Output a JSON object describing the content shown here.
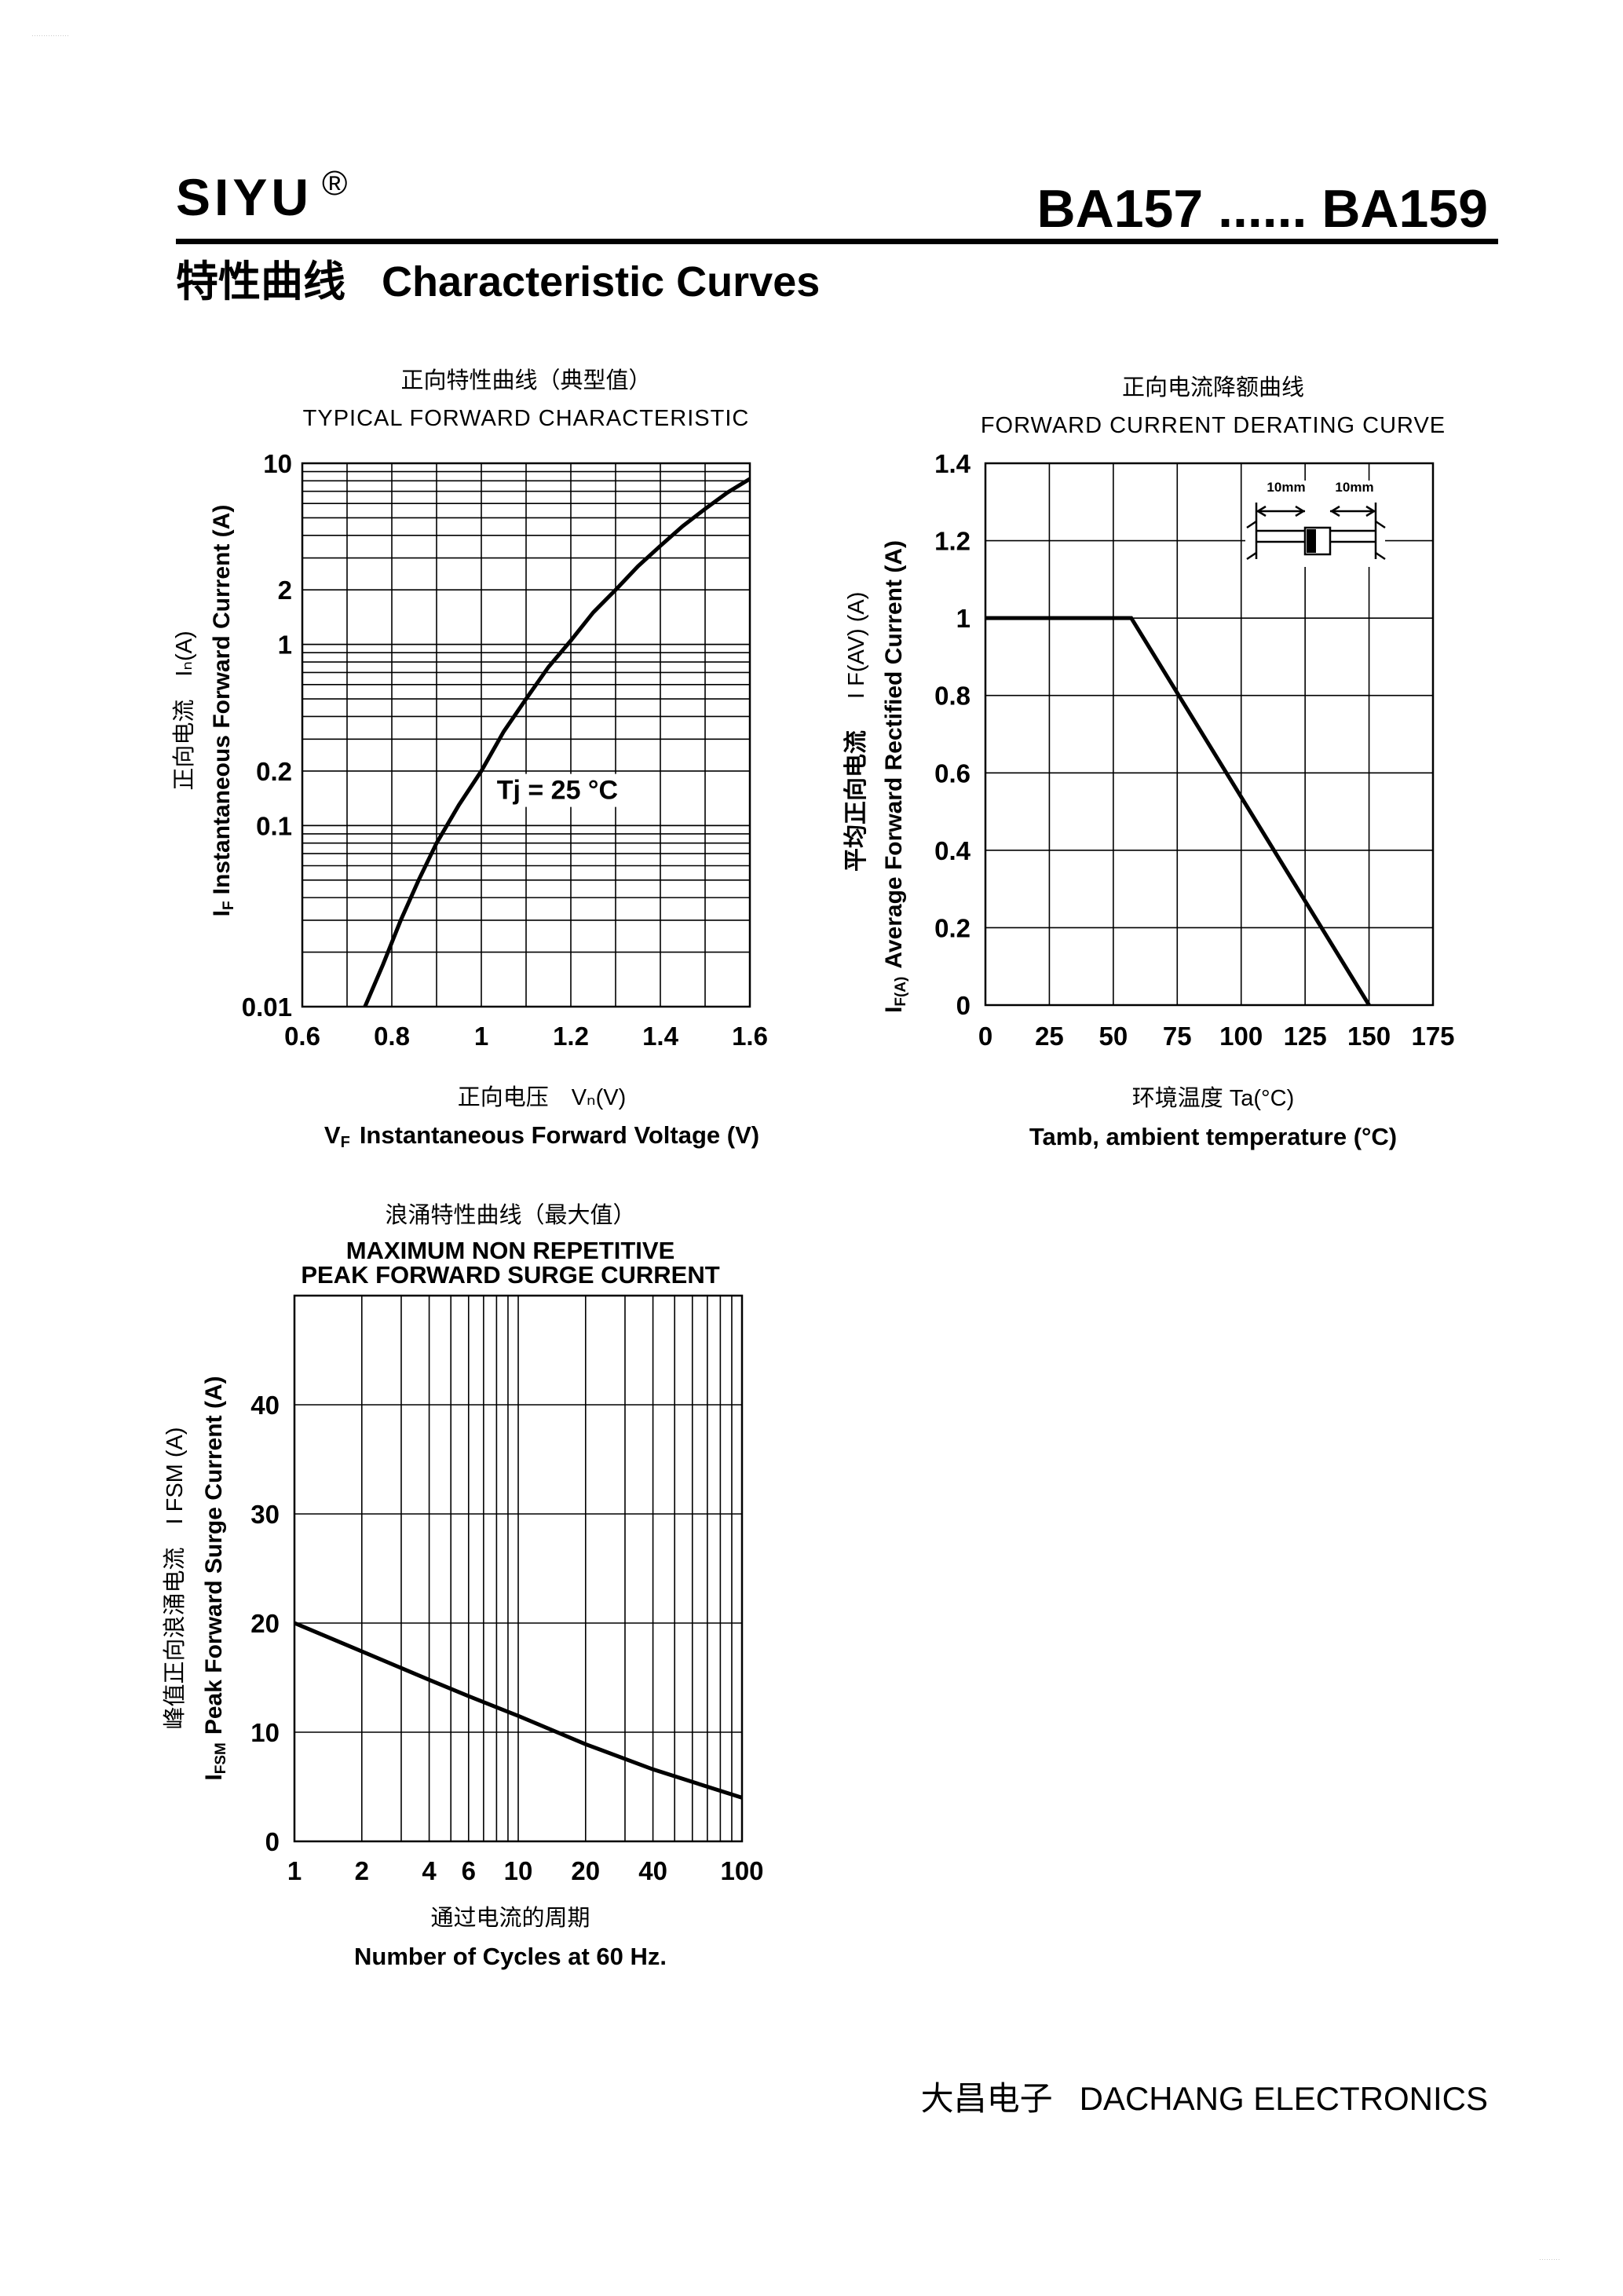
{
  "header": {
    "brand": "SIYU",
    "registered_mark": "®",
    "model_range": "BA157 ...... BA159",
    "section_cn": "特性曲线",
    "section_en": "Characteristic Curves"
  },
  "footer": {
    "company_cn": "大昌电子",
    "company_en": "DACHANG ELECTRONICS"
  },
  "page_marks": {
    "top_left": "················",
    "bottom_right": "·········"
  },
  "chart_data": [
    {
      "type": "line",
      "title_cn": "正向特性曲线（典型值）",
      "title": "TYPICAL FORWARD CHARACTERISTIC",
      "xlabel_cn": "正向电压　Vₙ(V)",
      "xlabel": "Instantaneous Forward Voltage (V)",
      "xlabel_symbol": "V",
      "xlabel_symbol_sub": "F",
      "ylabel_cn": "正向电流　Iₙ(A)",
      "ylabel": "Instantaneous Forward Current (A)",
      "ylabel_symbol": "I",
      "ylabel_symbol_sub": "F",
      "x_scale": "linear",
      "y_scale": "log",
      "xlim": [
        0.6,
        1.6
      ],
      "ylim": [
        0.01,
        10
      ],
      "x_ticks": [
        "0.6",
        "0.8",
        "1",
        "1.2",
        "1.4",
        "1.6"
      ],
      "x_tick_values": [
        0.6,
        0.8,
        1.0,
        1.2,
        1.4,
        1.6
      ],
      "y_ticks": [
        "0.01",
        "0.1",
        "0.2",
        "1",
        "2",
        "10"
      ],
      "y_tick_values": [
        0.01,
        0.1,
        0.2,
        1,
        2,
        10
      ],
      "grid": true,
      "annotation": "Tj = 25 °C",
      "annotation_at": {
        "x": 1.17,
        "y": 0.14
      },
      "series": [
        {
          "x": [
            0.74,
            0.78,
            0.82,
            0.86,
            0.9,
            0.95,
            1.0,
            1.05,
            1.1,
            1.15,
            1.2,
            1.25,
            1.3,
            1.35,
            1.4,
            1.45,
            1.5,
            1.55,
            1.6
          ],
          "y": [
            0.01,
            0.017,
            0.03,
            0.05,
            0.08,
            0.13,
            0.2,
            0.33,
            0.5,
            0.75,
            1.05,
            1.5,
            2.0,
            2.7,
            3.5,
            4.5,
            5.6,
            6.9,
            8.2
          ]
        }
      ]
    },
    {
      "type": "line",
      "title_cn": "正向电流降额曲线",
      "title": "FORWARD CURRENT DERATING CURVE",
      "xlabel_cn": "环境温度 Ta(°C)",
      "xlabel": "Tamb, ambient temperature (°C)",
      "ylabel_cn": "平均正向电流",
      "ylabel_sym": "I F(AV)  (A)",
      "ylabel": "Average Forward Rectified Current (A)",
      "ylabel_symbol": "I",
      "ylabel_symbol_sub": "F(A)",
      "xlim": [
        0,
        175
      ],
      "ylim": [
        0,
        1.4
      ],
      "x_ticks": [
        "0",
        "25",
        "50",
        "75",
        "100",
        "125",
        "150",
        "175"
      ],
      "x_tick_values": [
        0,
        25,
        50,
        75,
        100,
        125,
        150,
        175
      ],
      "y_ticks": [
        "0",
        "0.2",
        "0.4",
        "0.6",
        "0.8",
        "1",
        "1.2",
        "1.4"
      ],
      "y_tick_values": [
        0,
        0.2,
        0.4,
        0.6,
        0.8,
        1.0,
        1.2,
        1.4
      ],
      "grid": true,
      "inset_labels": [
        "10mm",
        "10mm"
      ],
      "series": [
        {
          "x": [
            0,
            57,
            150
          ],
          "y": [
            1.0,
            1.0,
            0.0
          ]
        }
      ]
    },
    {
      "type": "line",
      "title_cn": "浪涌特性曲线（最大值）",
      "title": "MAXIMUM NON REPETITIVE",
      "subtitle": "PEAK FORWARD SURGE CURRENT",
      "xlabel_cn": "通过电流的周期",
      "xlabel": "Number  of  Cycles at 60 Hz.",
      "ylabel_cn": "峰值正向浪涌电流　I FSM (A)",
      "ylabel": "Peak Forward Surge Current (A)",
      "ylabel_symbol": "I",
      "ylabel_symbol_sub": "FSM",
      "x_scale": "log",
      "xlim": [
        1,
        100
      ],
      "ylim": [
        0,
        50
      ],
      "x_ticks": [
        "1",
        "2",
        "4",
        "6",
        "10",
        "20",
        "40",
        "100"
      ],
      "x_tick_values": [
        1,
        2,
        4,
        6,
        10,
        20,
        40,
        100
      ],
      "y_ticks": [
        "0",
        "10",
        "20",
        "30",
        "40"
      ],
      "y_tick_values": [
        0,
        10,
        20,
        30,
        40
      ],
      "grid": true,
      "series": [
        {
          "x": [
            1,
            2,
            4,
            6,
            10,
            20,
            40,
            100
          ],
          "y": [
            20.0,
            17.4,
            14.8,
            13.3,
            11.5,
            8.9,
            6.6,
            4.0
          ]
        }
      ]
    }
  ]
}
